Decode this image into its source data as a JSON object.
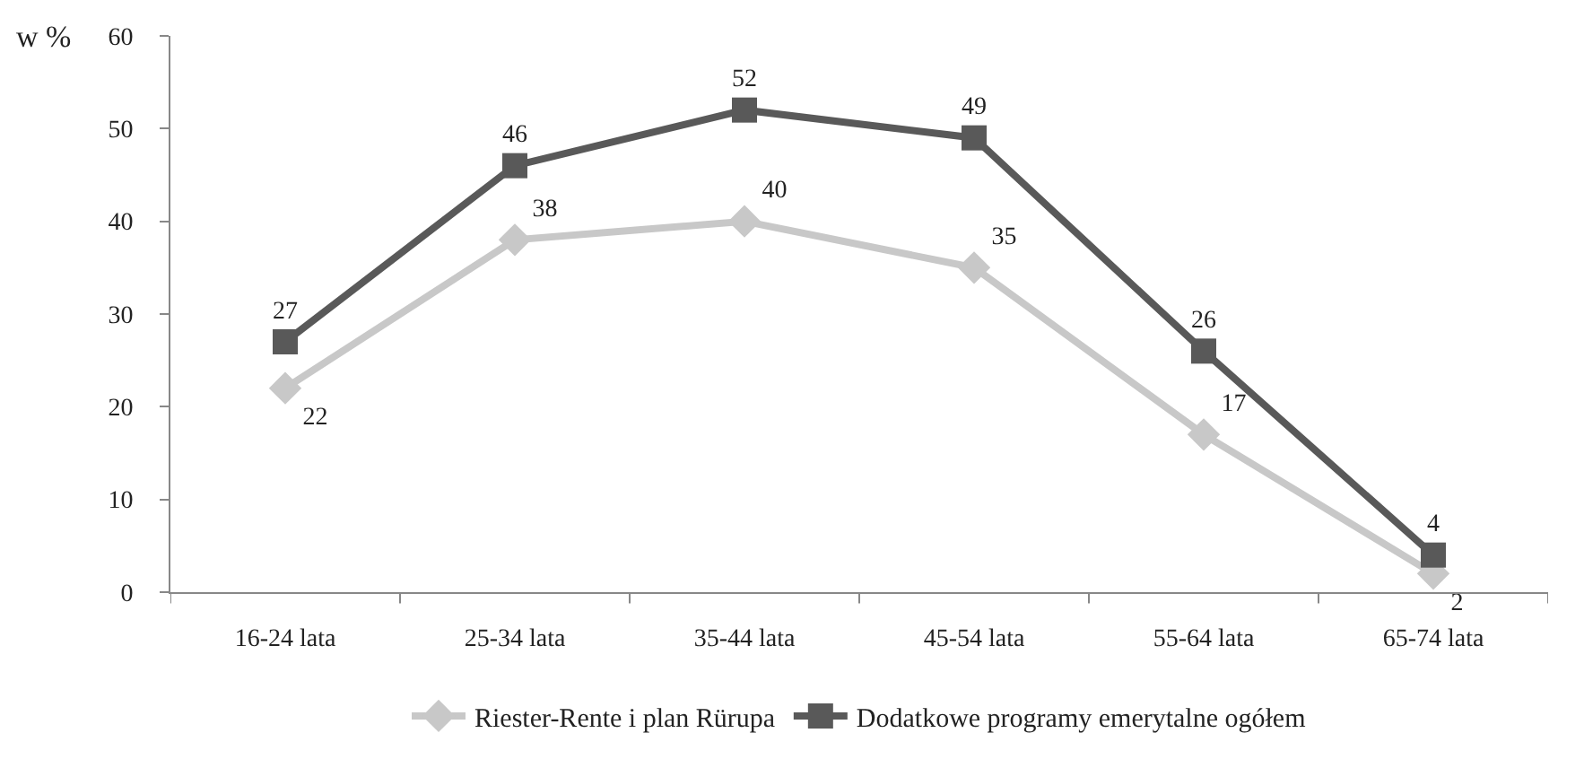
{
  "chart_data": {
    "type": "line",
    "ylabel": "w %",
    "categories": [
      "16-24 lata",
      "25-34 lata",
      "35-44 lata",
      "45-54 lata",
      "55-64 lata",
      "65-74 lata"
    ],
    "series": [
      {
        "name": "Riester-Rente i plan Rürupa",
        "color": "#c8c8c8",
        "marker": "diamond",
        "values": [
          22,
          38,
          40,
          35,
          17,
          2
        ]
      },
      {
        "name": "Dodatkowe programy emerytalne ogółem",
        "color": "#595959",
        "marker": "square",
        "values": [
          27,
          46,
          52,
          49,
          26,
          4
        ]
      }
    ],
    "ylim": [
      0,
      60
    ],
    "yticks": [
      0,
      10,
      20,
      30,
      40,
      50,
      60
    ],
    "legend": "bottom",
    "data_labels": true,
    "line_style": "solid"
  }
}
